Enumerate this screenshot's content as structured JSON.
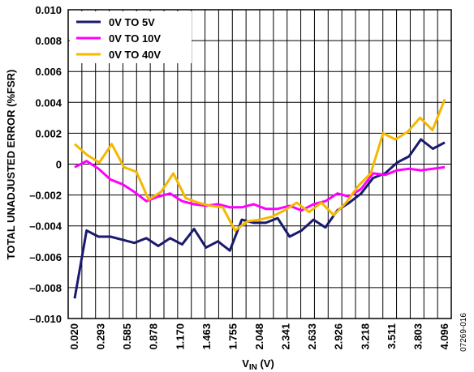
{
  "chart_data": {
    "type": "line",
    "xlabel": "V",
    "xlabel_sub": "IN",
    "xlabel_unit": " (V)",
    "ylabel": "TOTAL  UNADJUSTED ERROR (%FSR)",
    "figure_id": "07269-016",
    "ylim": [
      -0.01,
      0.01
    ],
    "y_ticks": [
      "0.010",
      "0.008",
      "0.006",
      "0.004",
      "0.002",
      "0",
      "–0.002",
      "–0.004",
      "–0.006",
      "–0.008",
      "–0.010"
    ],
    "x_ticks": [
      "0.020",
      "0.293",
      "0.585",
      "0.878",
      "1.170",
      "1.463",
      "1.755",
      "2.048",
      "2.341",
      "2.633",
      "2.926",
      "3.218",
      "3.511",
      "3.803",
      "4.096"
    ],
    "grid": true,
    "legend_position": "top-left",
    "series": [
      {
        "name": "0V TO 5V",
        "color": "#1a1a6e",
        "values": [
          -0.0087,
          -0.0043,
          -0.0047,
          -0.0047,
          -0.0049,
          -0.0051,
          -0.0048,
          -0.0053,
          -0.0048,
          -0.0052,
          -0.0042,
          -0.0054,
          -0.005,
          -0.0056,
          -0.0036,
          -0.0038,
          -0.0038,
          -0.0035,
          -0.0047,
          -0.0043,
          -0.0036,
          -0.0041,
          -0.003,
          -0.0025,
          -0.0019,
          -0.0009,
          -0.0006,
          0.0001,
          0.0005,
          0.0016,
          0.001,
          0.0014
        ]
      },
      {
        "name": "0V TO 10V",
        "color": "#ff00ff",
        "values": [
          -0.0002,
          0.0002,
          -0.0003,
          -0.001,
          -0.0013,
          -0.0018,
          -0.0024,
          -0.0021,
          -0.0019,
          -0.0024,
          -0.0026,
          -0.0027,
          -0.0026,
          -0.0028,
          -0.0028,
          -0.0026,
          -0.0029,
          -0.0029,
          -0.0027,
          -0.003,
          -0.0026,
          -0.0024,
          -0.0019,
          -0.0021,
          -0.0016,
          -0.0006,
          -0.0007,
          -0.0004,
          -0.0003,
          -0.0004,
          -0.0003,
          -0.0002
        ]
      },
      {
        "name": "0V TO 40V",
        "color": "#f5b800",
        "values": [
          0.0013,
          0.0006,
          0.0001,
          0.0013,
          -0.0002,
          -0.0005,
          -0.0023,
          -0.0018,
          -0.0006,
          -0.0022,
          -0.0025,
          -0.0027,
          -0.0028,
          -0.0043,
          -0.0037,
          -0.0036,
          -0.0034,
          -0.003,
          -0.0025,
          -0.0031,
          -0.0025,
          -0.0033,
          -0.0025,
          -0.0014,
          -0.0006,
          0.002,
          0.0016,
          0.0021,
          0.003,
          0.0022,
          0.0042
        ]
      }
    ]
  }
}
